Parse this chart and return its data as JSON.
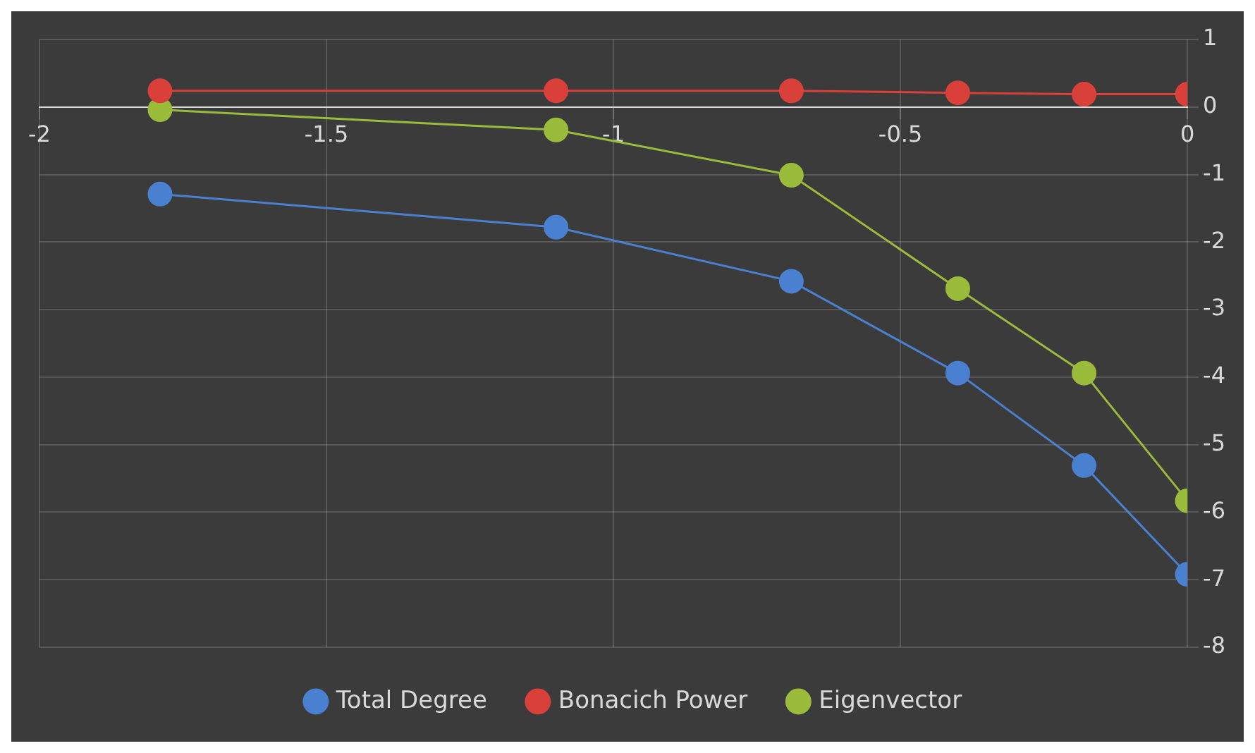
{
  "chart_data": {
    "type": "line",
    "x": [
      -1.79,
      -1.1,
      -0.69,
      -0.4,
      -0.18,
      0
    ],
    "series": [
      {
        "name": "Total Degree",
        "color": "#4a80d0",
        "values": [
          -1.29,
          -1.78,
          -2.58,
          -3.94,
          -5.31,
          -6.92
        ]
      },
      {
        "name": "Bonacich Power",
        "color": "#d9403a",
        "values": [
          0.24,
          0.24,
          0.24,
          0.21,
          0.19,
          0.19
        ]
      },
      {
        "name": "Eigenvector",
        "color": "#9bbb3b",
        "values": [
          -0.04,
          -0.34,
          -1.01,
          -2.69,
          -3.94,
          -5.83
        ]
      }
    ],
    "xlim": [
      -2,
      0
    ],
    "xticks": [
      -2,
      -1.5,
      -1,
      -0.5,
      0
    ],
    "ylim": [
      -8,
      1
    ],
    "yticks": [
      -8,
      -7,
      -6,
      -5,
      -4,
      -3,
      -2,
      -1,
      0,
      1
    ],
    "grid": true,
    "legend": "bottom",
    "marker": "circle",
    "line_style": "solid"
  }
}
